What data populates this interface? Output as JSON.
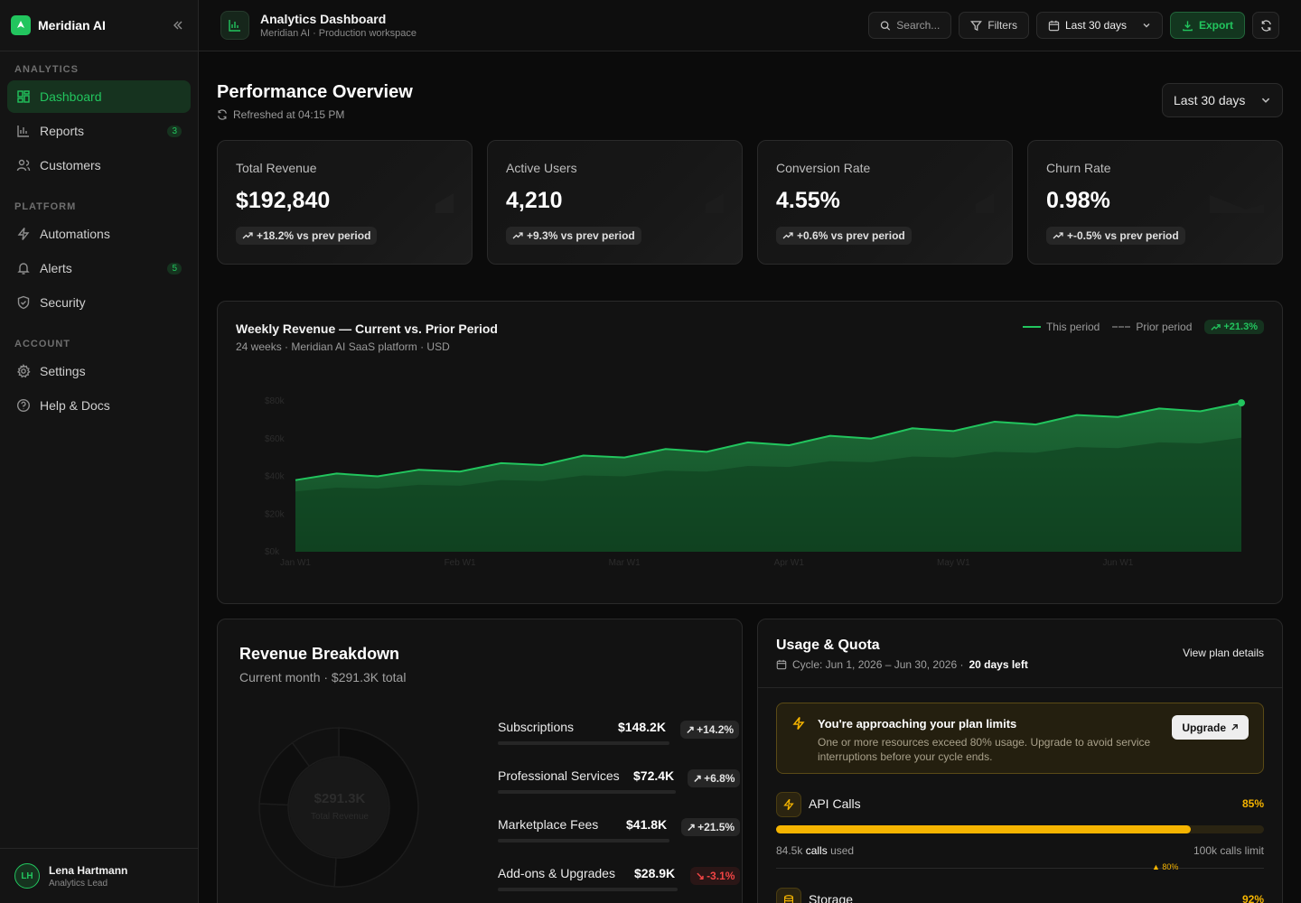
{
  "brand": {
    "name": "Meridian AI"
  },
  "sidebar": {
    "sections": [
      {
        "label": "ANALYTICS",
        "items": [
          {
            "label": "Dashboard",
            "icon": "dashboard-icon",
            "active": true
          },
          {
            "label": "Reports",
            "icon": "bar-chart-icon",
            "badge": "3"
          },
          {
            "label": "Customers",
            "icon": "users-icon"
          }
        ]
      },
      {
        "label": "PLATFORM",
        "items": [
          {
            "label": "Automations",
            "icon": "zap-icon"
          },
          {
            "label": "Alerts",
            "icon": "bell-icon",
            "badge": "5"
          },
          {
            "label": "Security",
            "icon": "shield-icon"
          }
        ]
      },
      {
        "label": "ACCOUNT",
        "items": [
          {
            "label": "Settings",
            "icon": "gear-icon"
          },
          {
            "label": "Help & Docs",
            "icon": "help-icon"
          }
        ]
      }
    ],
    "user": {
      "initials": "LH",
      "name": "Lena Hartmann",
      "role": "Analytics Lead"
    }
  },
  "topbar": {
    "title": "Analytics Dashboard",
    "subtitle": "Meridian AI · Production workspace",
    "search_placeholder": "Search...",
    "filters_label": "Filters",
    "range_label": "Last 30 days",
    "export_label": "Export"
  },
  "page": {
    "title": "Performance Overview",
    "refreshed": "Refreshed at 04:15 PM",
    "range_label": "Last 30 days"
  },
  "kpis": [
    {
      "label": "Total Revenue",
      "value": "$192,840",
      "delta": "+18.2% vs prev period"
    },
    {
      "label": "Active Users",
      "value": "4,210",
      "delta": "+9.3% vs prev period"
    },
    {
      "label": "Conversion Rate",
      "value": "4.55%",
      "delta": "+0.6% vs prev period"
    },
    {
      "label": "Churn Rate",
      "value": "0.98%",
      "delta": "+-0.5% vs prev period"
    }
  ],
  "revenue_chart": {
    "title": "Weekly Revenue — Current vs. Prior Period",
    "subtitle": "24 weeks · Meridian AI SaaS platform · USD",
    "legend_current": "This period",
    "legend_prior": "Prior period",
    "legend_badge": "+21.3%"
  },
  "chart_data": {
    "type": "area",
    "x": [
      "Jan W1",
      "Jan W2",
      "Jan W3",
      "Jan W4",
      "Feb W1",
      "Feb W2",
      "Feb W3",
      "Feb W4",
      "Mar W1",
      "Mar W2",
      "Mar W3",
      "Mar W4",
      "Apr W1",
      "Apr W2",
      "Apr W3",
      "Apr W4",
      "May W1",
      "May W2",
      "May W3",
      "May W4",
      "Jun W1",
      "Jun W2",
      "Jun W3",
      "Jun W4"
    ],
    "x_tick_labels": [
      "Jan W1",
      "Feb W1",
      "Mar W1",
      "Apr W1",
      "May W1",
      "Jun W1"
    ],
    "y_tick_labels": [
      "$0k",
      "$20k",
      "$40k",
      "$60k",
      "$80k"
    ],
    "ylim": [
      0,
      80000
    ],
    "series": [
      {
        "name": "This period",
        "values": [
          38000,
          41500,
          40000,
          43500,
          42500,
          47000,
          46000,
          51000,
          50000,
          54500,
          53000,
          58000,
          56500,
          61500,
          60000,
          65500,
          64000,
          69000,
          67500,
          72500,
          71500,
          76000,
          74500,
          79000
        ]
      },
      {
        "name": "Prior period",
        "values": [
          32000,
          34000,
          33500,
          35500,
          35000,
          38000,
          37500,
          40500,
          40000,
          43000,
          42500,
          45500,
          45000,
          48000,
          47500,
          50500,
          50000,
          53000,
          52500,
          55500,
          55000,
          58000,
          57500,
          60500
        ]
      }
    ],
    "grid": false,
    "legend": "top-right"
  },
  "revenue_breakdown": {
    "title": "Revenue Breakdown",
    "subtitle": "Current month · $291.3K total",
    "center_value": "$291.3K",
    "center_label": "Total Revenue",
    "rows": [
      {
        "name": "Subscriptions",
        "value": "$148.2K",
        "amount": 148.2,
        "delta": "+14.2%",
        "negative": false
      },
      {
        "name": "Professional Services",
        "value": "$72.4K",
        "amount": 72.4,
        "delta": "+6.8%",
        "negative": false
      },
      {
        "name": "Marketplace Fees",
        "value": "$41.8K",
        "amount": 41.8,
        "delta": "+21.5%",
        "negative": false
      },
      {
        "name": "Add-ons & Upgrades",
        "value": "$28.9K",
        "amount": 28.9,
        "delta": "-3.1%",
        "negative": true
      }
    ]
  },
  "usage": {
    "title": "Usage & Quota",
    "cycle": "Cycle: Jun 1, 2026 – Jun 30, 2026 ·",
    "days_left": "20 days left",
    "plan_link": "View plan details",
    "alert_title": "You're approaching your plan limits",
    "alert_text": "One or more resources exceed 80% usage. Upgrade to avoid service interruptions before your cycle ends.",
    "upgrade_label": "Upgrade",
    "metrics": [
      {
        "name": "API Calls",
        "pct": "85%",
        "fraction": 0.85,
        "used_value": "84.5k",
        "used_unit": "calls",
        "used_suffix": "used",
        "limit": "100k calls limit",
        "threshold": "▲ 80%"
      },
      {
        "name": "Storage",
        "pct": "92%",
        "fraction": 0.92
      }
    ]
  },
  "colors": {
    "accent": "#22c55e",
    "warning": "#f5b400",
    "negative": "#ef4444",
    "background": "#0b0b0b"
  }
}
